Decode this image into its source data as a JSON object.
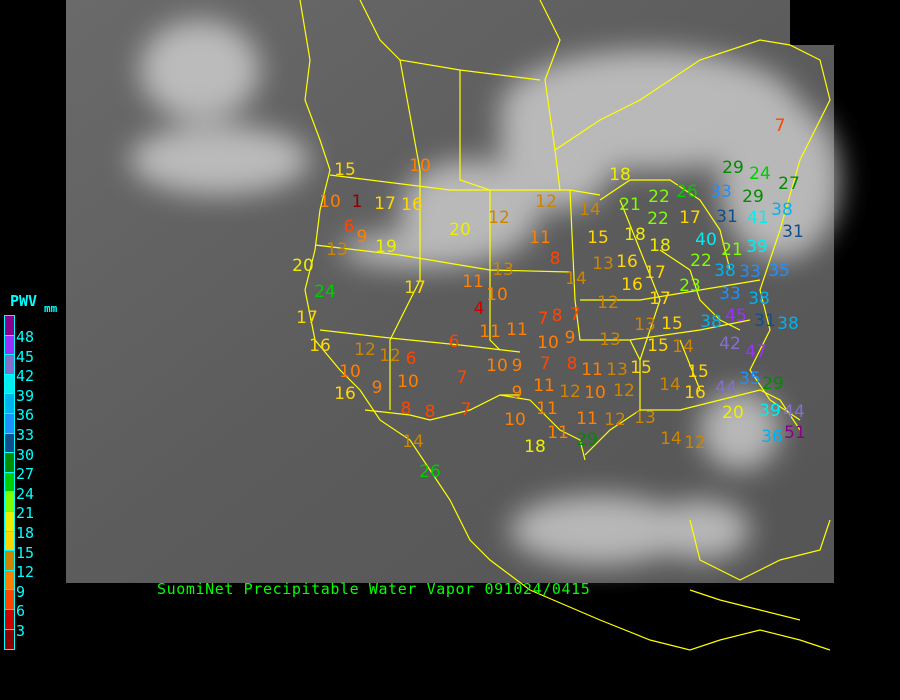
{
  "legend": {
    "title": "PWV",
    "unit": "mm",
    "ticks": [
      "48",
      "45",
      "42",
      "39",
      "36",
      "33",
      "30",
      "27",
      "24",
      "21",
      "18",
      "15",
      "12",
      "9",
      "6",
      "3"
    ],
    "colors": [
      "#8b008b",
      "#9b30ff",
      "#8470cc",
      "#00eeee",
      "#00b2ee",
      "#1e90ff",
      "#104e8b",
      "#008b00",
      "#00cd00",
      "#7fff00",
      "#eeee00",
      "#ffd700",
      "#cd8500",
      "#ff7f00",
      "#ff4500",
      "#cd0000",
      "#8b0000"
    ]
  },
  "caption": "SuomiNet Precipitable Water Vapor 091024/0415",
  "border_color": "#ffff00",
  "stations": [
    15,
    10,
    1,
    6,
    17,
    16,
    10,
    9,
    19,
    13,
    20,
    24,
    17,
    20,
    12,
    12,
    14,
    11,
    8,
    13,
    11,
    10,
    4,
    17,
    16,
    12,
    10,
    12,
    6,
    16,
    9,
    10,
    8,
    8,
    6,
    7,
    10,
    9,
    9,
    11,
    11,
    10,
    7,
    7,
    8,
    7,
    9,
    8,
    11,
    12,
    11,
    10,
    11,
    11,
    12,
    10,
    12,
    13,
    11,
    13,
    15,
    14,
    16,
    14,
    12,
    7,
    14,
    18,
    29,
    26,
    18,
    15,
    13,
    14,
    16,
    18,
    18,
    17,
    16,
    17,
    12,
    13,
    21,
    22,
    22,
    17,
    26,
    33,
    31,
    29,
    29,
    24,
    27,
    40,
    38,
    41,
    22,
    21,
    33,
    31,
    38,
    39,
    23,
    33,
    38,
    35,
    45,
    31,
    38,
    38,
    42,
    47,
    35,
    29,
    44,
    39,
    44,
    36,
    51,
    15,
    14,
    15,
    13,
    15,
    20,
    7
  ]
}
